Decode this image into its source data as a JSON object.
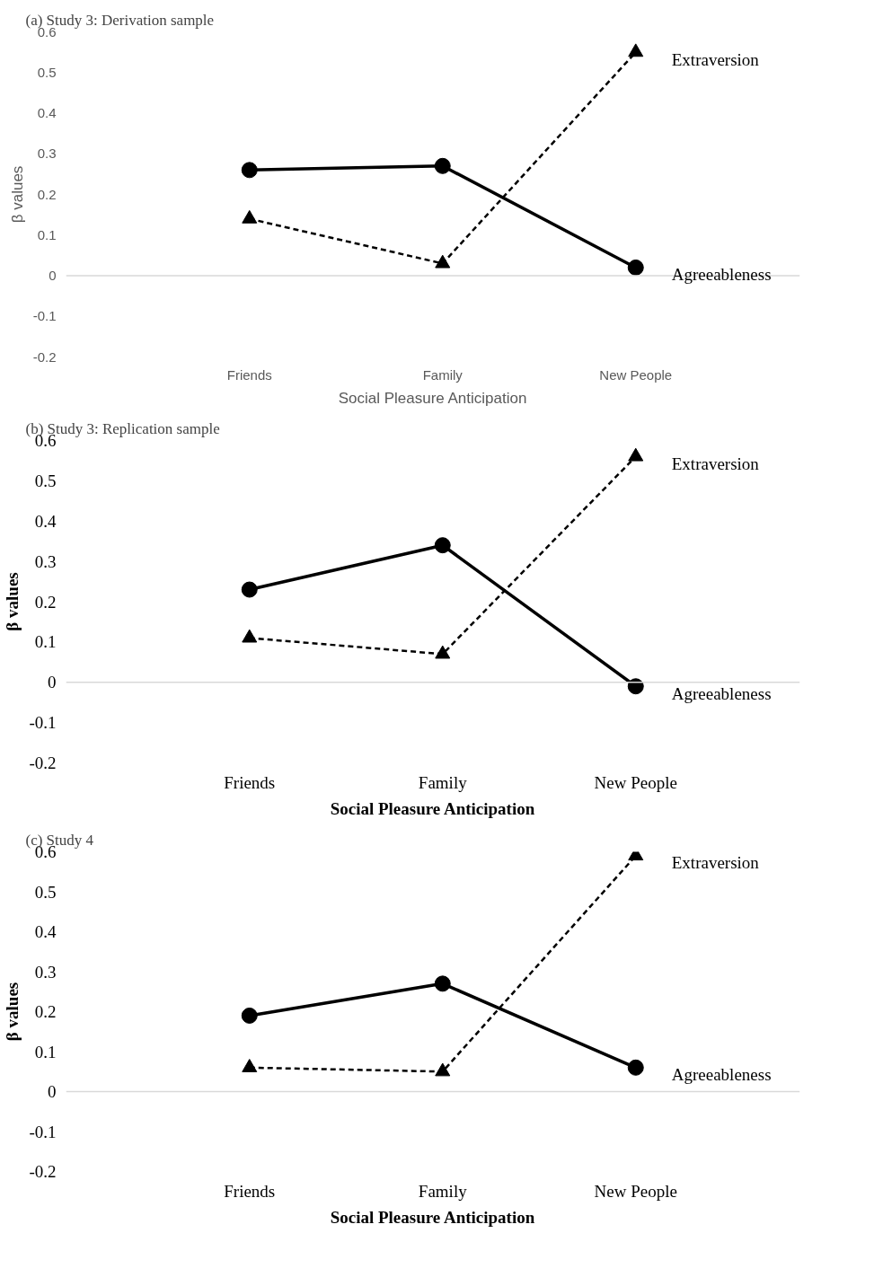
{
  "chart_data": [
    {
      "type": "line",
      "title": "(a)  Study 3: Derivation sample",
      "xlabel": "Social Pleasure Anticipation",
      "ylabel": "β values",
      "categories": [
        "Friends",
        "Family",
        "New People"
      ],
      "ylim": [
        -0.2,
        0.6
      ],
      "yticks": [
        -0.2,
        -0.1,
        0,
        0.1,
        0.2,
        0.3,
        0.4,
        0.5,
        0.6
      ],
      "grid": false,
      "legend": false,
      "ref_lines": [
        {
          "axis": "y",
          "value": 0
        }
      ],
      "series": [
        {
          "name": "Agreeableness",
          "color": "#000000",
          "marker": "circle",
          "line_style": "solid",
          "values": [
            0.26,
            0.27,
            0.02
          ]
        },
        {
          "name": "Extraversion",
          "color": "#000000",
          "marker": "triangle",
          "line_style": "dashed",
          "values": [
            0.14,
            0.03,
            0.55
          ]
        }
      ]
    },
    {
      "type": "line",
      "title": "(b) Study 3: Replication sample",
      "xlabel": "Social Pleasure Anticipation",
      "ylabel": "β values",
      "categories": [
        "Friends",
        "Family",
        "New People"
      ],
      "ylim": [
        -0.2,
        0.6
      ],
      "yticks": [
        -0.2,
        -0.1,
        0,
        0.1,
        0.2,
        0.3,
        0.4,
        0.5,
        0.6
      ],
      "grid": false,
      "legend": false,
      "ref_lines": [
        {
          "axis": "y",
          "value": 0
        }
      ],
      "series": [
        {
          "name": "Agreeableness",
          "color": "#000000",
          "marker": "circle",
          "line_style": "solid",
          "values": [
            0.23,
            0.34,
            -0.01
          ]
        },
        {
          "name": "Extraversion",
          "color": "#000000",
          "marker": "triangle",
          "line_style": "dashed",
          "values": [
            0.11,
            0.07,
            0.56
          ]
        }
      ]
    },
    {
      "type": "line",
      "title": "(c) Study 4",
      "xlabel": "Social Pleasure Anticipation",
      "ylabel": "β values",
      "categories": [
        "Friends",
        "Family",
        "New People"
      ],
      "ylim": [
        -0.2,
        0.6
      ],
      "yticks": [
        -0.2,
        -0.1,
        0,
        0.1,
        0.2,
        0.3,
        0.4,
        0.5,
        0.6
      ],
      "grid": false,
      "legend": false,
      "ref_lines": [
        {
          "axis": "y",
          "value": 0
        }
      ],
      "series": [
        {
          "name": "Agreeableness",
          "color": "#000000",
          "marker": "circle",
          "line_style": "solid",
          "values": [
            0.19,
            0.27,
            0.06
          ]
        },
        {
          "name": "Extraversion",
          "color": "#000000",
          "marker": "triangle",
          "line_style": "dashed",
          "values": [
            0.06,
            0.05,
            0.59
          ]
        }
      ]
    }
  ]
}
